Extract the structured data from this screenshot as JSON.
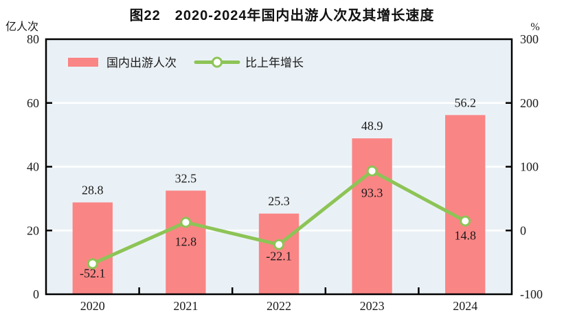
{
  "chart_data": {
    "type": "bar+line",
    "title": "图22　2020-2024年国内出游人次及其增长速度",
    "categories": [
      "2020",
      "2021",
      "2022",
      "2023",
      "2024"
    ],
    "series": [
      {
        "name": "国内出游人次",
        "type": "bar",
        "axis": "left",
        "color": "#FA8585",
        "values": [
          28.8,
          32.5,
          25.3,
          48.9,
          56.2
        ],
        "labels": [
          "28.8",
          "32.5",
          "25.3",
          "48.9",
          "56.2"
        ]
      },
      {
        "name": "比上年增长",
        "type": "line",
        "axis": "right",
        "color": "#8DC456",
        "marker": "circle-white-fill",
        "values": [
          -52.1,
          12.8,
          -22.1,
          93.3,
          14.8
        ],
        "labels": [
          "-52.1",
          "12.8",
          "-22.1",
          "93.3",
          "14.8"
        ],
        "label_dy": [
          20,
          34,
          23,
          38,
          27
        ]
      }
    ],
    "left_axis": {
      "unit": "亿人次",
      "min": 0,
      "max": 80,
      "ticks": [
        0,
        20,
        40,
        60,
        80
      ],
      "tick_labels": [
        "0",
        "20",
        "40",
        "60",
        "80"
      ]
    },
    "right_axis": {
      "unit": "%",
      "min": -100,
      "max": 300,
      "ticks": [
        -100,
        0,
        100,
        200,
        300
      ],
      "tick_labels": [
        "-100",
        "0",
        "100",
        "200",
        "300"
      ]
    },
    "legend": {
      "position": "top-left-inside",
      "entries": [
        "国内出游人次",
        "比上年增长"
      ]
    },
    "style": {
      "plot_bg": "#EAF1F6",
      "grid_color": "#FFFFFF",
      "frame_color": "#000000",
      "text_color": "#1A1A1A",
      "grid": "on",
      "legend_border": "none"
    }
  }
}
